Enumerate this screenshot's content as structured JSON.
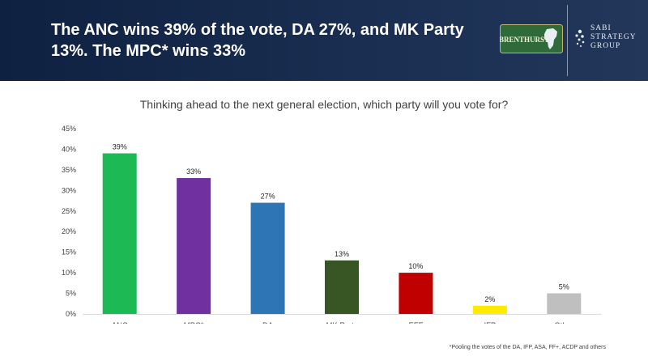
{
  "header": {
    "title": "The ANC wins 39% of the vote, DA 27%, and MK Party 13%. The MPC* wins 33%"
  },
  "logos": {
    "brenthurst": "BRENTHURST",
    "sabi_lines": [
      "SABI",
      "STRATEGY",
      "GROUP"
    ]
  },
  "chart_data": {
    "type": "bar",
    "title": "Thinking ahead to the next general election, which party will you vote for?",
    "categories": [
      "ANC",
      "MPC*",
      "DA",
      "MK Party",
      "EFF",
      "IFP",
      "Other"
    ],
    "values": [
      39,
      33,
      27,
      13,
      10,
      2,
      5
    ],
    "value_labels": [
      "39%",
      "33%",
      "27%",
      "13%",
      "10%",
      "2%",
      "5%"
    ],
    "colors": [
      "#1db954",
      "#7030a0",
      "#2e75b6",
      "#375623",
      "#c00000",
      "#ffea00",
      "#bfbfbf"
    ],
    "ylim": [
      0,
      45
    ],
    "yticks": [
      0,
      5,
      10,
      15,
      20,
      25,
      30,
      35,
      40,
      45
    ],
    "ytick_labels": [
      "0%",
      "5%",
      "10%",
      "15%",
      "20%",
      "25%",
      "30%",
      "35%",
      "40%",
      "45%"
    ],
    "grid": false,
    "legend": "none"
  },
  "footnote": "*Pooling the votes of the DA, IFP, ASA, FF+, ACDP and others"
}
